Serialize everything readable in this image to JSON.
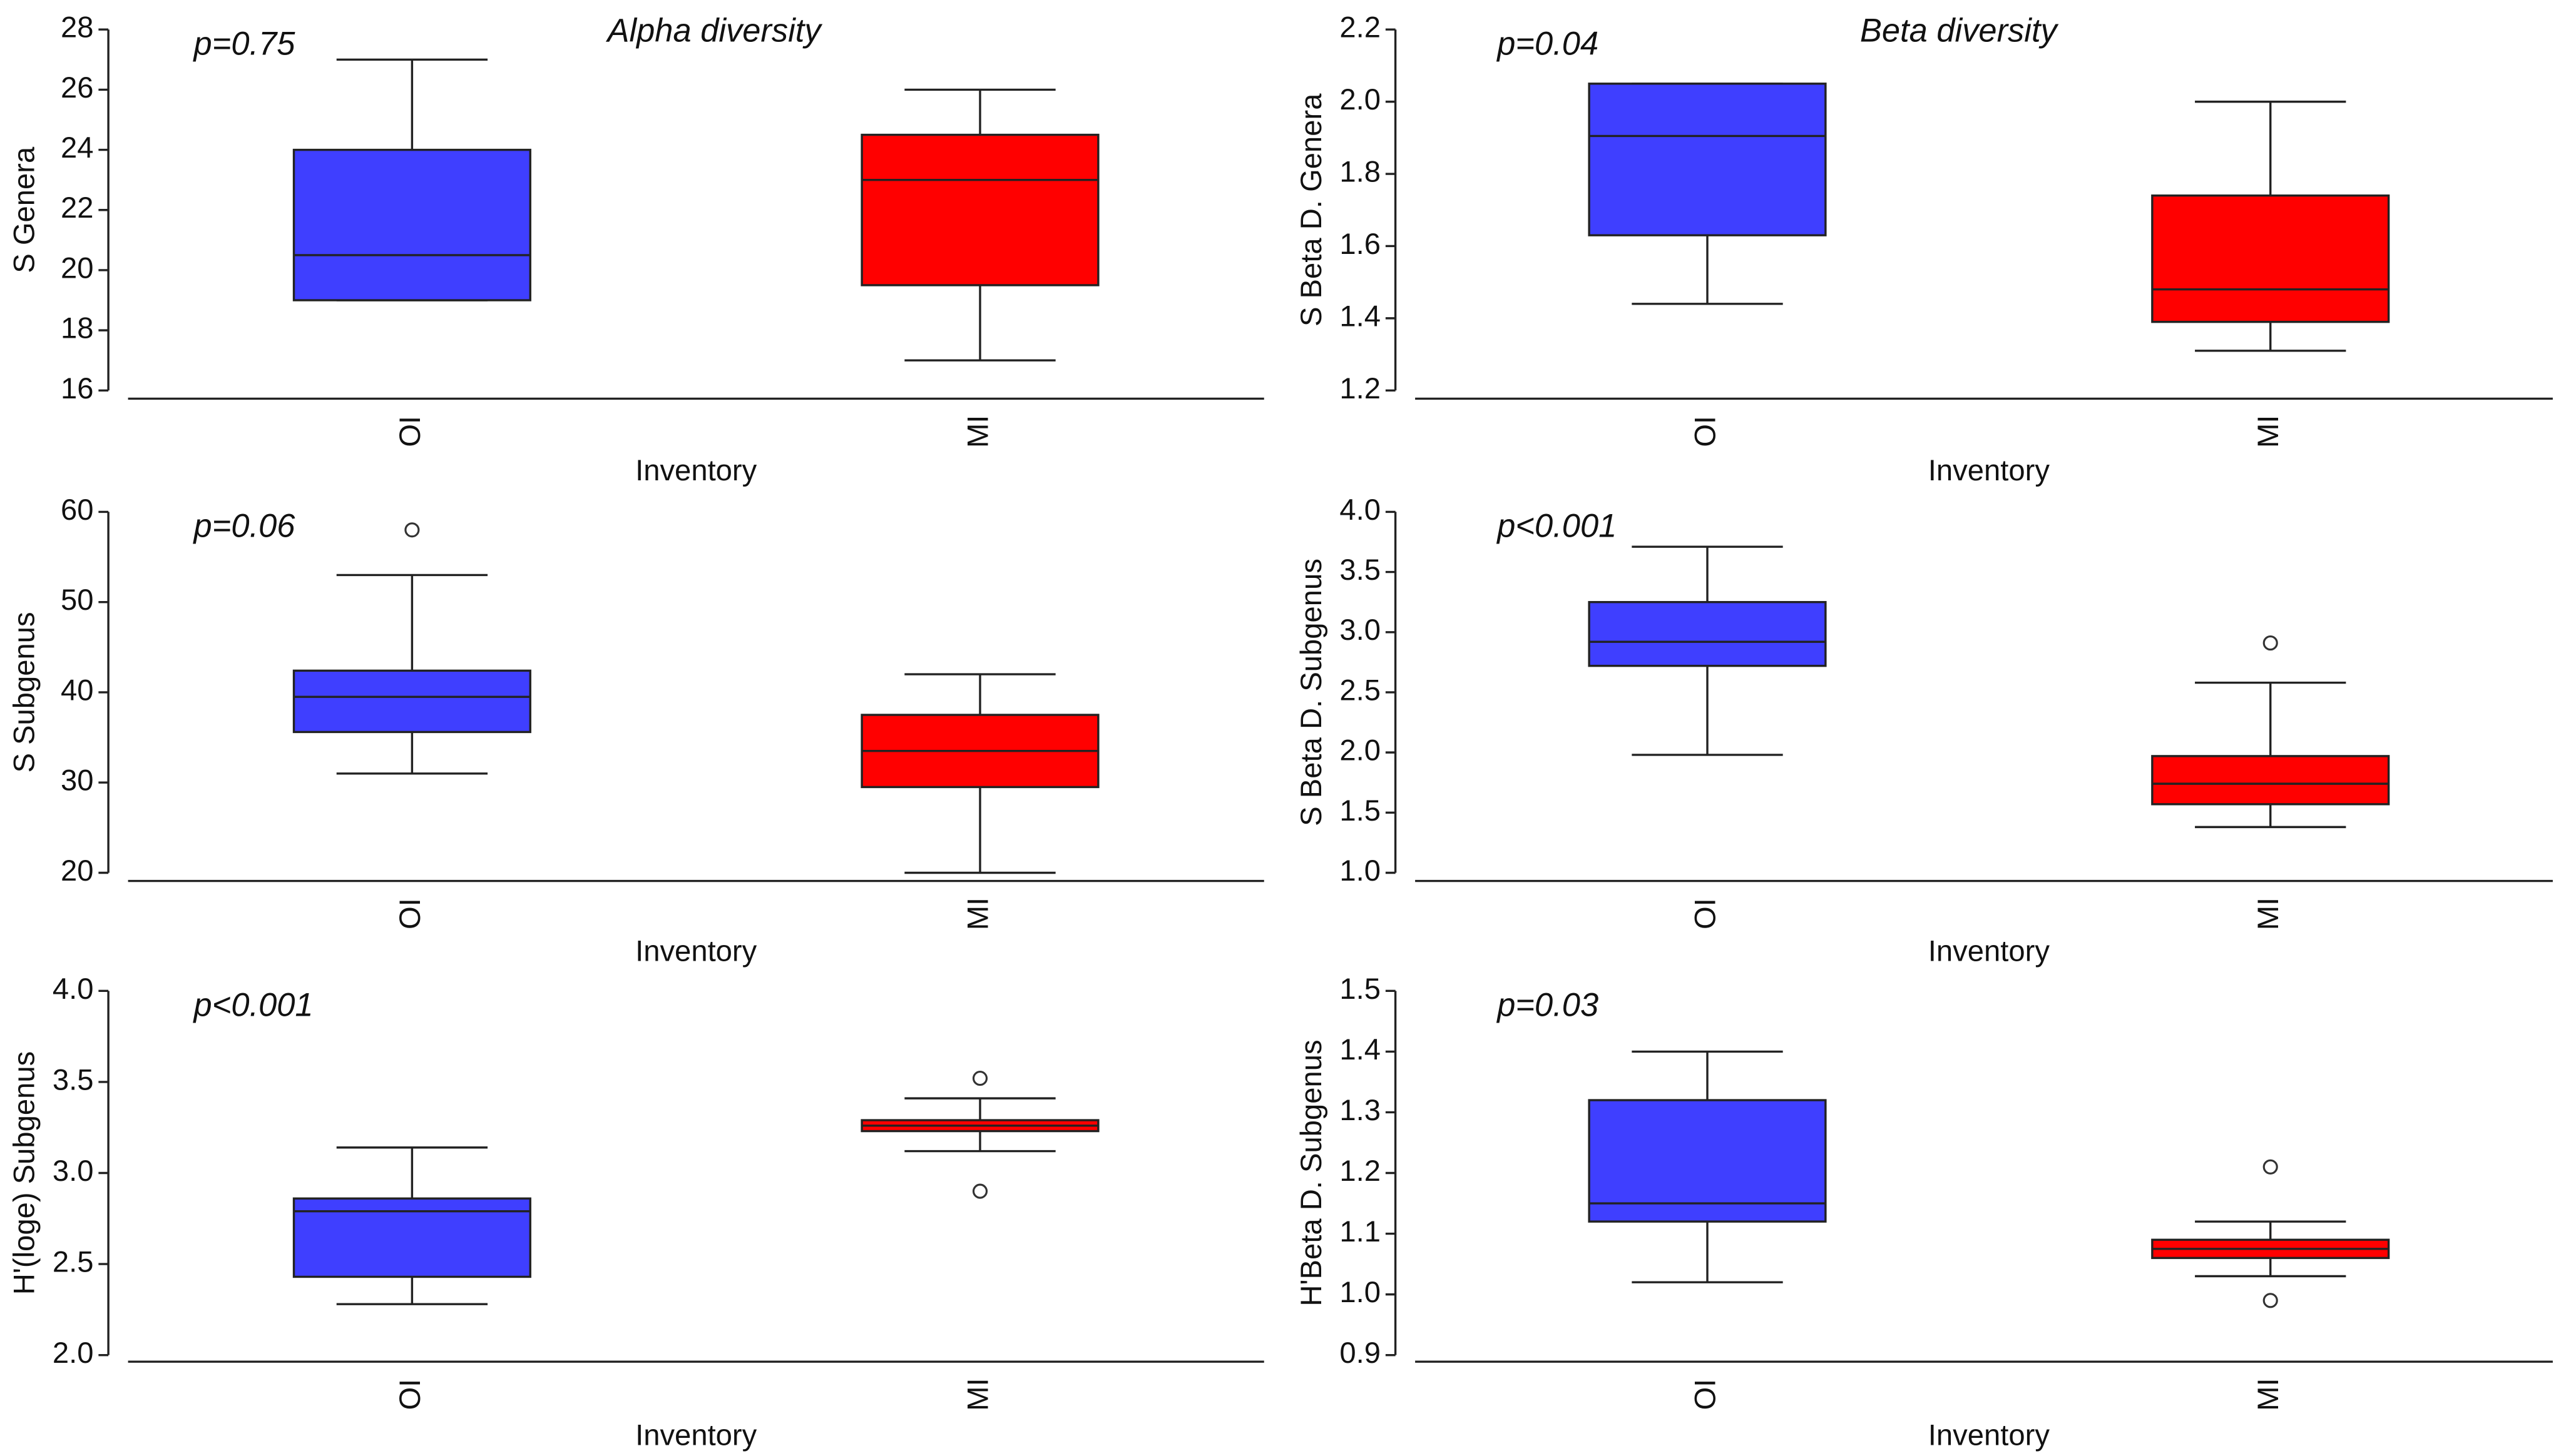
{
  "chart_data": [
    {
      "type": "box",
      "title": "Alpha diversity",
      "annotation": "p=0.75",
      "ylabel": "S Genera",
      "xlabel": "Inventory",
      "categories": [
        "OI",
        "MI"
      ],
      "colors": [
        "#3f3fff",
        "#ff0000"
      ],
      "boxes": [
        {
          "min": 19,
          "q1": 19,
          "median": 20.5,
          "q3": 24,
          "max": 27,
          "outliers": []
        },
        {
          "min": 17,
          "q1": 19.5,
          "median": 23,
          "q3": 24.5,
          "max": 26,
          "outliers": []
        }
      ],
      "ylim": [
        16,
        28
      ],
      "yticks": [
        16,
        18,
        20,
        22,
        24,
        26,
        28
      ]
    },
    {
      "type": "box",
      "title": "Beta diversity",
      "annotation": "p=0.04",
      "ylabel": "S Beta D. Genera",
      "xlabel": "Inventory",
      "categories": [
        "OI",
        "MI"
      ],
      "colors": [
        "#3f3fff",
        "#ff0000"
      ],
      "boxes": [
        {
          "min": 1.44,
          "q1": 1.63,
          "median": 1.905,
          "q3": 2.05,
          "max": 2.05,
          "outliers": []
        },
        {
          "min": 1.31,
          "q1": 1.39,
          "median": 1.48,
          "q3": 1.74,
          "max": 2.0,
          "outliers": []
        }
      ],
      "ylim": [
        1.2,
        2.2
      ],
      "yticks": [
        1.2,
        1.4,
        1.6,
        1.8,
        {
          "value": 2.0,
          "label": "2.0"
        },
        2.2
      ]
    },
    {
      "type": "box",
      "annotation": "p=0.06",
      "ylabel": "S Subgenus",
      "xlabel": "Inventory",
      "categories": [
        "OI",
        "MI"
      ],
      "colors": [
        "#3f3fff",
        "#ff0000"
      ],
      "boxes": [
        {
          "min": 31,
          "q1": 35.6,
          "median": 39.5,
          "q3": 42.4,
          "max": 53,
          "outliers": [
            58
          ]
        },
        {
          "min": 20,
          "q1": 29.5,
          "median": 33.5,
          "q3": 37.5,
          "max": 42,
          "outliers": []
        }
      ],
      "ylim": [
        20,
        60
      ],
      "yticks": [
        20,
        30,
        40,
        50,
        60
      ]
    },
    {
      "type": "box",
      "annotation": "p<0.001",
      "ylabel": "S Beta D. Subgenus",
      "xlabel": "Inventory",
      "categories": [
        "OI",
        "MI"
      ],
      "colors": [
        "#3f3fff",
        "#ff0000"
      ],
      "boxes": [
        {
          "min": 1.98,
          "q1": 2.72,
          "median": 2.92,
          "q3": 3.25,
          "max": 3.71,
          "outliers": []
        },
        {
          "min": 1.38,
          "q1": 1.57,
          "median": 1.74,
          "q3": 1.97,
          "max": 2.58,
          "outliers": [
            2.91
          ]
        }
      ],
      "ylim": [
        1.0,
        4.0
      ],
      "yticks": [
        {
          "value": 1.0,
          "label": "1.0"
        },
        1.5,
        {
          "value": 2.0,
          "label": "2.0"
        },
        2.5,
        {
          "value": 3.0,
          "label": "3.0"
        },
        3.5,
        {
          "value": 4.0,
          "label": "4.0"
        }
      ]
    },
    {
      "type": "box",
      "annotation": "p<0.001",
      "ylabel": "H'(loge) Subgenus",
      "xlabel": "Inventory",
      "categories": [
        "OI",
        "MI"
      ],
      "colors": [
        "#3f3fff",
        "#ff0000"
      ],
      "boxes": [
        {
          "min": 2.28,
          "q1": 2.43,
          "median": 2.79,
          "q3": 2.86,
          "max": 3.14,
          "outliers": []
        },
        {
          "min": 3.12,
          "q1": 3.23,
          "median": 3.26,
          "q3": 3.29,
          "max": 3.41,
          "outliers": [
            3.52,
            2.9
          ]
        }
      ],
      "ylim": [
        2.0,
        4.0
      ],
      "yticks": [
        {
          "value": 2.0,
          "label": "2.0"
        },
        2.5,
        {
          "value": 3.0,
          "label": "3.0"
        },
        3.5,
        {
          "value": 4.0,
          "label": "4.0"
        }
      ]
    },
    {
      "type": "box",
      "annotation": "p=0.03",
      "ylabel": "H'Beta D. Subgenus",
      "xlabel": "Inventory",
      "categories": [
        "OI",
        "MI"
      ],
      "colors": [
        "#3f3fff",
        "#ff0000"
      ],
      "boxes": [
        {
          "min": 1.02,
          "q1": 1.12,
          "median": 1.15,
          "q3": 1.32,
          "max": 1.4,
          "outliers": []
        },
        {
          "min": 1.03,
          "q1": 1.06,
          "median": 1.075,
          "q3": 1.09,
          "max": 1.12,
          "outliers": [
            1.21,
            0.99
          ]
        }
      ],
      "ylim": [
        0.9,
        1.5
      ],
      "yticks": [
        0.9,
        {
          "value": 1.0,
          "label": "1.0"
        },
        1.1,
        1.2,
        1.3,
        1.4,
        1.5
      ]
    }
  ]
}
